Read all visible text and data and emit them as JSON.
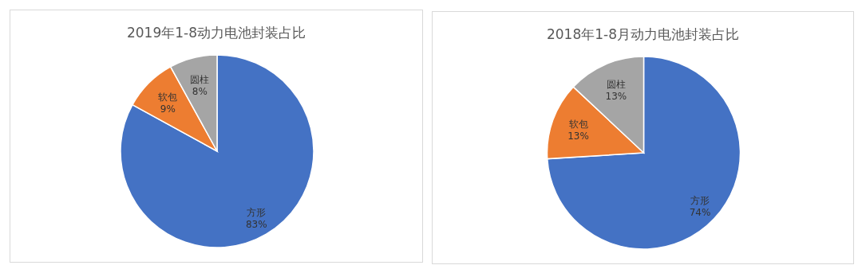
{
  "chart_data": [
    {
      "type": "pie",
      "title": "2019年1-8动力电池封装占比",
      "categories": [
        "方形",
        "软包",
        "圆柱"
      ],
      "values": [
        83,
        9,
        8
      ],
      "value_labels": [
        "83%",
        "9%",
        "8%"
      ],
      "colors": [
        "#4472c4",
        "#ed7d31",
        "#a5a5a5"
      ]
    },
    {
      "type": "pie",
      "title": "2018年1-8月动力电池封装占比",
      "categories": [
        "方形",
        "软包",
        "圆柱"
      ],
      "values": [
        74,
        13,
        13
      ],
      "value_labels": [
        "74%",
        "13%",
        "13%"
      ],
      "colors": [
        "#4472c4",
        "#ed7d31",
        "#a5a5a5"
      ]
    }
  ]
}
